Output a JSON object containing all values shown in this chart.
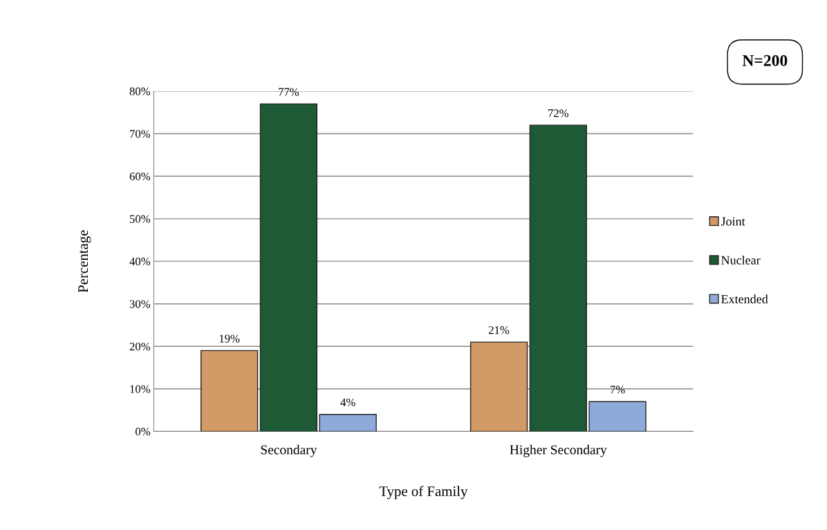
{
  "chart_data": {
    "type": "bar",
    "xlabel": "Type of Family",
    "ylabel": "Percentage",
    "categories": [
      "Secondary",
      "Higher Secondary"
    ],
    "series": [
      {
        "name": "Joint",
        "color": "#d29a66",
        "values": [
          19,
          21
        ],
        "value_labels": [
          "19%",
          "21%"
        ]
      },
      {
        "name": "Nuclear",
        "color": "#1e5a36",
        "values": [
          77,
          72
        ],
        "value_labels": [
          "77%",
          "72%"
        ]
      },
      {
        "name": "Extended",
        "color": "#8eaadb",
        "values": [
          4,
          7
        ],
        "value_labels": [
          "4%",
          "7%"
        ]
      }
    ],
    "ylim": [
      0,
      80
    ],
    "yticks": [
      {
        "value": 0,
        "label": "0%"
      },
      {
        "value": 10,
        "label": "10%"
      },
      {
        "value": 20,
        "label": "20%"
      },
      {
        "value": 30,
        "label": "30%"
      },
      {
        "value": 40,
        "label": "40%"
      },
      {
        "value": 50,
        "label": "50%"
      },
      {
        "value": 60,
        "label": "60%"
      },
      {
        "value": 70,
        "label": "70%"
      },
      {
        "value": 80,
        "label": "80%"
      }
    ],
    "grid": "y",
    "legend": "right",
    "annotations": [
      "N=200"
    ]
  }
}
